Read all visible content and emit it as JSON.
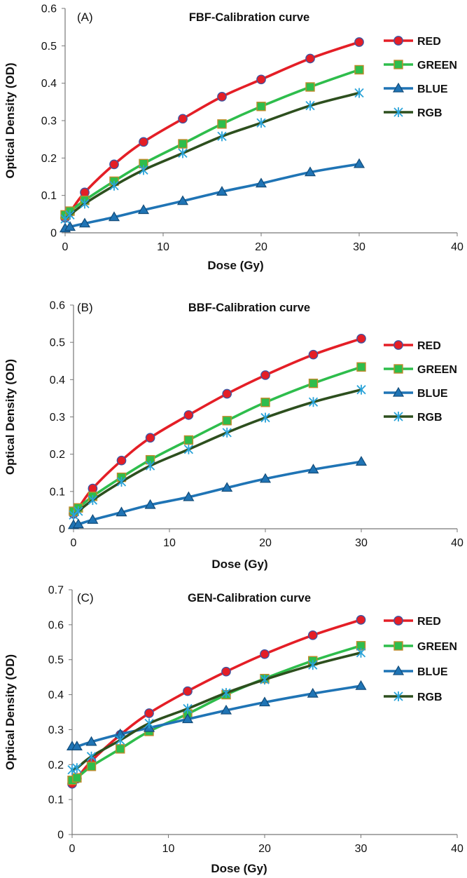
{
  "colors": {
    "RED": {
      "line": "#e41e26",
      "marker": "#e41e26",
      "stroke": "#3a55a4"
    },
    "GREEN": {
      "line": "#2ebd4c",
      "marker": "#2ebd4c",
      "stroke": "#c08a2a"
    },
    "BLUE": {
      "line": "#1f74b5",
      "marker": "#1f74b5",
      "stroke": "#134c7a"
    },
    "RGB": {
      "line": "#2d4f1e",
      "marker": "#29a3d9",
      "stroke": "#29a3d9"
    }
  },
  "chart_data": [
    {
      "type": "line",
      "panel_label": "(A)",
      "title": "FBF-Calibration curve",
      "xlabel": "Dose (Gy)",
      "ylabel": "Optical Density (OD)",
      "xlim": [
        0,
        40
      ],
      "ylim": [
        0,
        0.6
      ],
      "xticks": [
        "0",
        "10",
        "20",
        "30",
        "40"
      ],
      "yticks": [
        "0",
        "0.1",
        "0.2",
        "0.3",
        "0.4",
        "0.5",
        "0.6"
      ],
      "grid": false,
      "legend_position": "right",
      "x": [
        0,
        0.5,
        2,
        5,
        8,
        12,
        16,
        20,
        25,
        30
      ],
      "series": [
        {
          "name": "RED",
          "marker": "circle",
          "values": [
            0.04,
            0.055,
            0.108,
            0.183,
            0.243,
            0.305,
            0.364,
            0.41,
            0.466,
            0.51
          ]
        },
        {
          "name": "GREEN",
          "marker": "square",
          "values": [
            0.048,
            0.058,
            0.087,
            0.138,
            0.185,
            0.238,
            0.291,
            0.338,
            0.39,
            0.436
          ]
        },
        {
          "name": "BLUE",
          "marker": "triangle",
          "values": [
            0.012,
            0.016,
            0.025,
            0.042,
            0.061,
            0.085,
            0.11,
            0.132,
            0.162,
            0.184
          ]
        },
        {
          "name": "RGB",
          "marker": "star",
          "values": [
            0.037,
            0.048,
            0.078,
            0.126,
            0.168,
            0.213,
            0.258,
            0.294,
            0.34,
            0.374
          ]
        }
      ]
    },
    {
      "type": "line",
      "panel_label": "(B)",
      "title": "BBF-Calibration curve",
      "xlabel": "Dose (Gy)",
      "ylabel": "Optical Density (OD)",
      "xlim": [
        0,
        40
      ],
      "ylim": [
        0,
        0.6
      ],
      "xticks": [
        "0",
        "10",
        "20",
        "30",
        "40"
      ],
      "yticks": [
        "0",
        "0.1",
        "0.2",
        "0.3",
        "0.4",
        "0.5",
        "0.6"
      ],
      "grid": false,
      "legend_position": "right",
      "x": [
        0,
        0.5,
        2,
        5,
        8,
        12,
        16,
        20,
        25,
        30
      ],
      "series": [
        {
          "name": "RED",
          "marker": "circle",
          "values": [
            0.04,
            0.055,
            0.108,
            0.183,
            0.244,
            0.305,
            0.362,
            0.412,
            0.467,
            0.51
          ]
        },
        {
          "name": "GREEN",
          "marker": "square",
          "values": [
            0.047,
            0.056,
            0.087,
            0.138,
            0.185,
            0.238,
            0.29,
            0.339,
            0.39,
            0.434
          ]
        },
        {
          "name": "BLUE",
          "marker": "triangle",
          "values": [
            0.01,
            0.012,
            0.024,
            0.044,
            0.064,
            0.085,
            0.11,
            0.134,
            0.159,
            0.18
          ]
        },
        {
          "name": "RGB",
          "marker": "star",
          "values": [
            0.037,
            0.047,
            0.077,
            0.126,
            0.169,
            0.213,
            0.258,
            0.298,
            0.34,
            0.373
          ]
        }
      ]
    },
    {
      "type": "line",
      "panel_label": "(C)",
      "title": "GEN-Calibration curve",
      "xlabel": "Dose (Gy)",
      "ylabel": "Optical Density (OD)",
      "xlim": [
        0,
        40
      ],
      "ylim": [
        0,
        0.7
      ],
      "xticks": [
        "0",
        "10",
        "20",
        "30",
        "40"
      ],
      "yticks": [
        "0",
        "0.1",
        "0.2",
        "0.3",
        "0.4",
        "0.5",
        "0.6",
        "0.7"
      ],
      "grid": false,
      "legend_position": "right",
      "x": [
        0,
        0.5,
        2,
        5,
        8,
        12,
        16,
        20,
        25,
        30
      ],
      "series": [
        {
          "name": "RED",
          "marker": "circle",
          "values": [
            0.145,
            0.16,
            0.21,
            0.285,
            0.347,
            0.41,
            0.466,
            0.516,
            0.57,
            0.614
          ]
        },
        {
          "name": "GREEN",
          "marker": "square",
          "values": [
            0.155,
            0.162,
            0.195,
            0.245,
            0.295,
            0.345,
            0.4,
            0.446,
            0.497,
            0.54
          ]
        },
        {
          "name": "BLUE",
          "marker": "triangle",
          "values": [
            0.252,
            0.252,
            0.265,
            0.287,
            0.305,
            0.33,
            0.355,
            0.378,
            0.403,
            0.425
          ]
        },
        {
          "name": "RGB",
          "marker": "star",
          "values": [
            0.185,
            0.19,
            0.223,
            0.27,
            0.318,
            0.36,
            0.405,
            0.443,
            0.485,
            0.52
          ]
        }
      ]
    }
  ]
}
